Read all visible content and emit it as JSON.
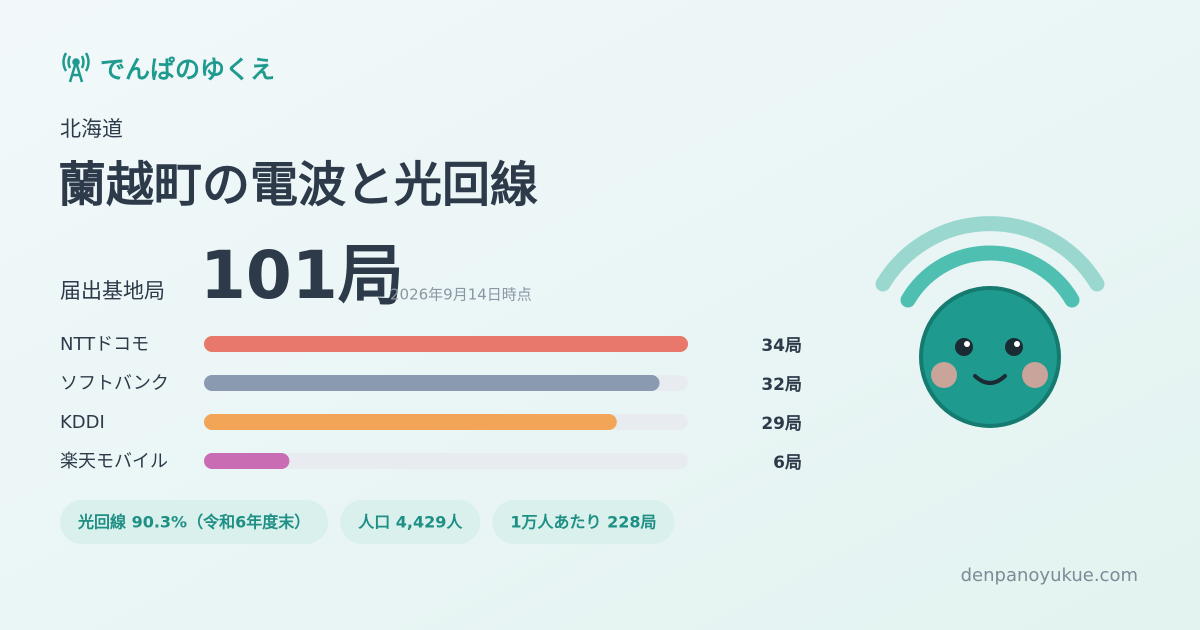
{
  "brand": "でんぱのゆくえ",
  "prefecture": "北海道",
  "title": "蘭越町の電波と光回線",
  "total_label": "届出基地局",
  "total": "101局",
  "as_of": "2026年9月14日時点",
  "carriers": [
    {
      "name": "NTTドコモ",
      "value": 34,
      "label": "34局",
      "color": "#e8786c"
    },
    {
      "name": "ソフトバンク",
      "value": 32,
      "label": "32局",
      "color": "#8a9ab0"
    },
    {
      "name": "KDDI",
      "value": 29,
      "label": "29局",
      "color": "#f2a556"
    },
    {
      "name": "楽天モバイル",
      "value": 6,
      "label": "6局",
      "color": "#c96cb4"
    }
  ],
  "stats": [
    "光回線 90.3%（令和6年度末）",
    "人口 4,429人",
    "1万人あたり 228局"
  ],
  "site": "denpanoyukue.com"
}
